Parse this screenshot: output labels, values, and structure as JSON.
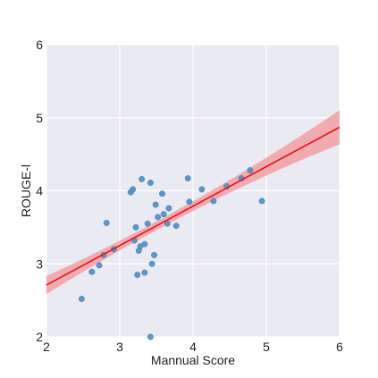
{
  "chart_data": {
    "type": "scatter",
    "title": "",
    "xlabel": "Mannual Score",
    "ylabel": "ROUGE-l",
    "xlim": [
      2,
      6
    ],
    "ylim": [
      2,
      6
    ],
    "xticks": [
      "2",
      "3",
      "4",
      "5",
      "6"
    ],
    "yticks": [
      "2",
      "3",
      "4",
      "5",
      "6"
    ],
    "grid": true,
    "legend": "none",
    "colors": {
      "background": "#eaeaf2",
      "grid": "#ffffff",
      "points": "#4c8fc2",
      "fit_line": "#e8151b",
      "confidence_band": "#f0a0a4"
    },
    "regression": {
      "slope": 0.54,
      "intercept": 1.63
    },
    "points": [
      {
        "x": 2.48,
        "y": 2.52
      },
      {
        "x": 2.62,
        "y": 2.89
      },
      {
        "x": 2.72,
        "y": 2.98
      },
      {
        "x": 2.78,
        "y": 3.12
      },
      {
        "x": 2.82,
        "y": 3.56
      },
      {
        "x": 2.92,
        "y": 3.2
      },
      {
        "x": 3.15,
        "y": 3.98
      },
      {
        "x": 3.18,
        "y": 4.02
      },
      {
        "x": 3.2,
        "y": 3.32
      },
      {
        "x": 3.22,
        "y": 3.5
      },
      {
        "x": 3.24,
        "y": 2.85
      },
      {
        "x": 3.26,
        "y": 3.18
      },
      {
        "x": 3.28,
        "y": 3.24
      },
      {
        "x": 3.3,
        "y": 4.16
      },
      {
        "x": 3.34,
        "y": 3.27
      },
      {
        "x": 3.34,
        "y": 2.88
      },
      {
        "x": 3.38,
        "y": 3.55
      },
      {
        "x": 3.42,
        "y": 4.11
      },
      {
        "x": 3.44,
        "y": 3.0
      },
      {
        "x": 3.47,
        "y": 3.12
      },
      {
        "x": 3.49,
        "y": 3.81
      },
      {
        "x": 3.52,
        "y": 3.64
      },
      {
        "x": 3.58,
        "y": 3.96
      },
      {
        "x": 3.6,
        "y": 3.68
      },
      {
        "x": 3.65,
        "y": 3.55
      },
      {
        "x": 3.67,
        "y": 3.76
      },
      {
        "x": 3.77,
        "y": 3.52
      },
      {
        "x": 3.93,
        "y": 4.17
      },
      {
        "x": 3.95,
        "y": 3.85
      },
      {
        "x": 4.12,
        "y": 4.02
      },
      {
        "x": 4.28,
        "y": 3.86
      },
      {
        "x": 4.46,
        "y": 4.06
      },
      {
        "x": 4.66,
        "y": 4.17
      },
      {
        "x": 4.78,
        "y": 4.28
      },
      {
        "x": 4.94,
        "y": 3.86
      },
      {
        "x": 3.42,
        "y": 2.0
      }
    ]
  }
}
